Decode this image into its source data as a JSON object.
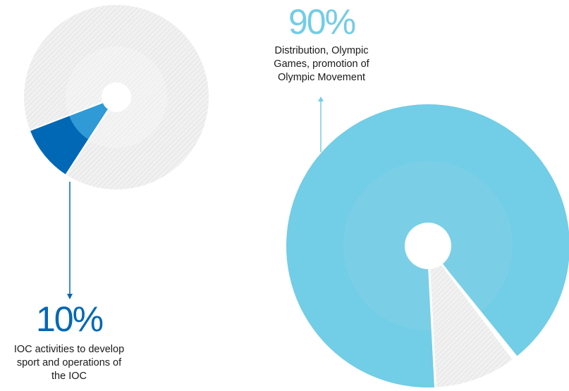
{
  "chart_data": [
    {
      "type": "pie",
      "slices": [
        {
          "label": "10%",
          "value": 10,
          "color": "#0068b4",
          "inner_color": "#2f9ad5",
          "highlighted": true
        },
        {
          "label": "90%",
          "value": 90,
          "color": "#ececec",
          "highlighted": false
        }
      ],
      "annotation": {
        "percent": "10%",
        "description": "IOC activities to develop sport and operations of the IOC"
      }
    },
    {
      "type": "pie",
      "slices": [
        {
          "label": "90%",
          "value": 90,
          "color": "#72cde6",
          "highlighted": true
        },
        {
          "label": "10%",
          "value": 10,
          "color": "#ececec",
          "highlighted": false
        }
      ],
      "annotation": {
        "percent": "90%",
        "description": "Distribution, Olympic Games, promotion of Olympic Movement"
      }
    }
  ],
  "colors": {
    "dark_blue": "#0068b4",
    "light_blue": "#72cde6",
    "hatch_grey": "#ececec"
  }
}
